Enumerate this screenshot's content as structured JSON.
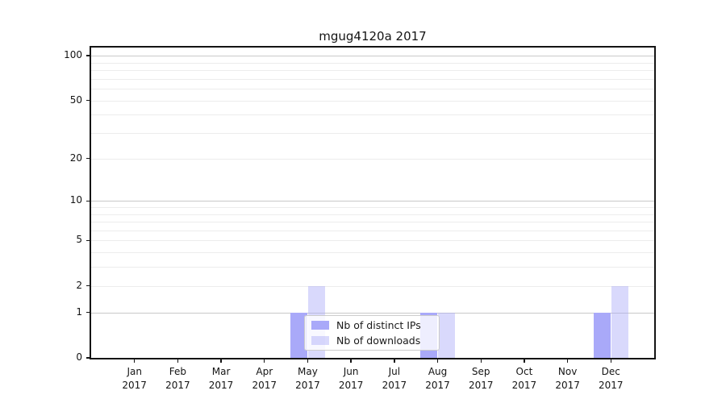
{
  "title": "mgug4120a 2017",
  "chart_data": {
    "type": "bar",
    "title": "mgug4120a 2017",
    "categories": [
      {
        "month": "Jan",
        "year": "2017"
      },
      {
        "month": "Feb",
        "year": "2017"
      },
      {
        "month": "Mar",
        "year": "2017"
      },
      {
        "month": "Apr",
        "year": "2017"
      },
      {
        "month": "May",
        "year": "2017"
      },
      {
        "month": "Jun",
        "year": "2017"
      },
      {
        "month": "Jul",
        "year": "2017"
      },
      {
        "month": "Aug",
        "year": "2017"
      },
      {
        "month": "Sep",
        "year": "2017"
      },
      {
        "month": "Oct",
        "year": "2017"
      },
      {
        "month": "Nov",
        "year": "2017"
      },
      {
        "month": "Dec",
        "year": "2017"
      }
    ],
    "series": [
      {
        "name": "Nb of distinct IPs",
        "color": "#a9a9f9",
        "values": [
          0,
          0,
          0,
          0,
          1,
          0,
          0,
          1,
          0,
          0,
          0,
          1
        ]
      },
      {
        "name": "Nb of downloads",
        "color": "rgba(170,170,249,0.45)",
        "values": [
          0,
          0,
          0,
          0,
          2,
          0,
          0,
          1,
          0,
          0,
          0,
          2
        ]
      }
    ],
    "y_scale": "log10(1+value)",
    "ylim": [
      0,
      114
    ],
    "y_tick_values": [
      0,
      1,
      2,
      5,
      10,
      20,
      50,
      100
    ],
    "y_tick_labels": [
      "0",
      "1",
      "2",
      "5",
      "10",
      "20",
      "50",
      "100"
    ],
    "y_major_gridlines": [
      1,
      10,
      100
    ],
    "y_minor_gridlines": [
      2,
      3,
      4,
      5,
      6,
      7,
      8,
      9,
      20,
      30,
      40,
      50,
      60,
      70,
      80,
      90
    ],
    "grid": true,
    "legend_position": "lower center"
  },
  "legend": {
    "items": [
      {
        "label": "Nb of distinct IPs",
        "color": "#a9a9f9"
      },
      {
        "label": "Nb of downloads",
        "color": "rgba(170,170,249,0.45)"
      }
    ]
  },
  "colors": {
    "background": "#ffffff",
    "spine": "#141414",
    "text": "#141414",
    "major_grid": "#c9c9c9",
    "minor_grid": "#ececec",
    "bar_distinct_ips": "#a9a9f9",
    "bar_downloads": "#d9d9fa",
    "legend_border": "#cccccc"
  }
}
